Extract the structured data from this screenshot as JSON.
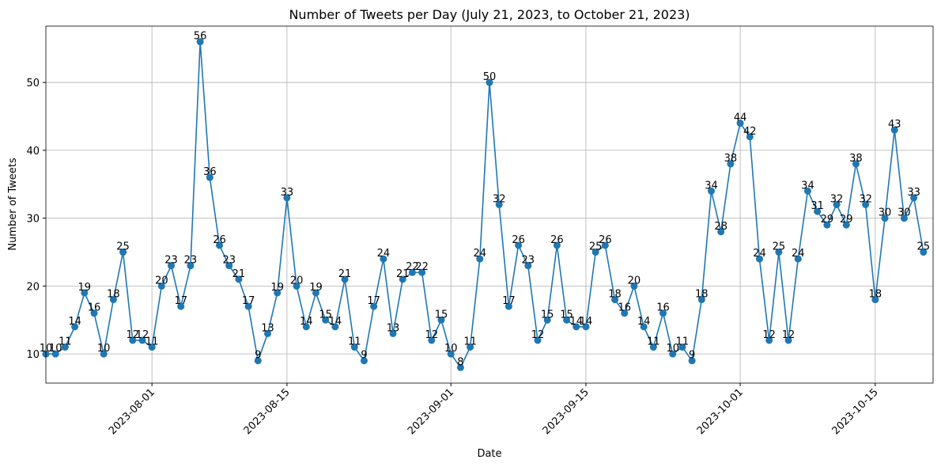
{
  "chart_data": {
    "type": "line",
    "title": "Number of Tweets per Day (July 21, 2023, to October 21, 2023)",
    "x_label": "Date",
    "y_label": "Number of Tweets",
    "x": [
      "2023-07-21",
      "2023-07-22",
      "2023-07-23",
      "2023-07-24",
      "2023-07-25",
      "2023-07-26",
      "2023-07-27",
      "2023-07-28",
      "2023-07-29",
      "2023-07-30",
      "2023-07-31",
      "2023-08-01",
      "2023-08-02",
      "2023-08-03",
      "2023-08-04",
      "2023-08-05",
      "2023-08-06",
      "2023-08-07",
      "2023-08-08",
      "2023-08-09",
      "2023-08-10",
      "2023-08-11",
      "2023-08-12",
      "2023-08-13",
      "2023-08-14",
      "2023-08-15",
      "2023-08-16",
      "2023-08-17",
      "2023-08-18",
      "2023-08-19",
      "2023-08-20",
      "2023-08-21",
      "2023-08-22",
      "2023-08-23",
      "2023-08-24",
      "2023-08-25",
      "2023-08-26",
      "2023-08-27",
      "2023-08-28",
      "2023-08-29",
      "2023-08-30",
      "2023-08-31",
      "2023-09-01",
      "2023-09-02",
      "2023-09-03",
      "2023-09-04",
      "2023-09-05",
      "2023-09-06",
      "2023-09-07",
      "2023-09-08",
      "2023-09-09",
      "2023-09-10",
      "2023-09-11",
      "2023-09-12",
      "2023-09-13",
      "2023-09-14",
      "2023-09-15",
      "2023-09-16",
      "2023-09-17",
      "2023-09-18",
      "2023-09-19",
      "2023-09-20",
      "2023-09-21",
      "2023-09-22",
      "2023-09-23",
      "2023-09-24",
      "2023-09-25",
      "2023-09-26",
      "2023-09-27",
      "2023-09-28",
      "2023-09-29",
      "2023-09-30",
      "2023-10-01",
      "2023-10-02",
      "2023-10-03",
      "2023-10-04",
      "2023-10-05",
      "2023-10-06",
      "2023-10-07",
      "2023-10-08",
      "2023-10-09",
      "2023-10-10",
      "2023-10-11",
      "2023-10-12",
      "2023-10-13",
      "2023-10-14",
      "2023-10-15",
      "2023-10-16",
      "2023-10-17",
      "2023-10-18",
      "2023-10-19",
      "2023-10-20"
    ],
    "series": [
      {
        "name": "Tweets",
        "color": "#1f77b4",
        "values": [
          10,
          10,
          11,
          14,
          19,
          16,
          10,
          18,
          25,
          12,
          12,
          11,
          20,
          23,
          17,
          23,
          56,
          36,
          26,
          23,
          21,
          17,
          9,
          13,
          19,
          33,
          20,
          14,
          19,
          15,
          14,
          21,
          11,
          9,
          17,
          24,
          13,
          21,
          22,
          22,
          12,
          15,
          10,
          8,
          11,
          24,
          50,
          32,
          17,
          26,
          23,
          12,
          15,
          26,
          15,
          14,
          14,
          25,
          26,
          18,
          16,
          20,
          14,
          11,
          16,
          10,
          11,
          9,
          18,
          34,
          28,
          38,
          44,
          42,
          24,
          12,
          25,
          12,
          24,
          34,
          31,
          29,
          32,
          29,
          38,
          32,
          18,
          30,
          43,
          30,
          33,
          25
        ]
      }
    ],
    "xlim": [
      "2023-07-21",
      "2023-10-21"
    ],
    "xticks": [
      "2023-08-01",
      "2023-08-15",
      "2023-09-01",
      "2023-09-15",
      "2023-10-01",
      "2023-10-15"
    ],
    "ylim": [
      5.7,
      58.3
    ],
    "yticks": [
      10,
      20,
      30,
      40,
      50
    ],
    "grid": true
  }
}
